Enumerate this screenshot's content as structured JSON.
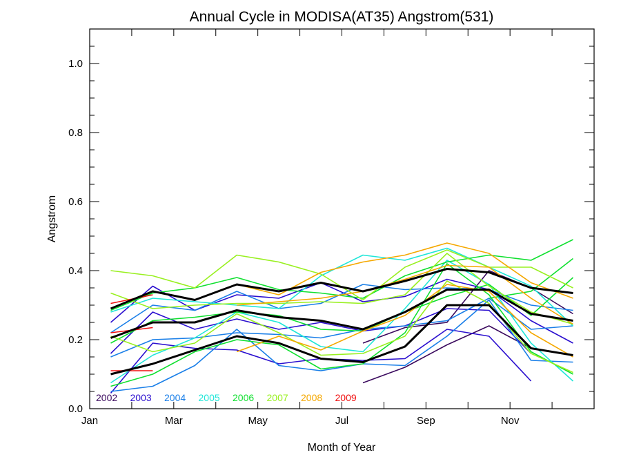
{
  "chart_data": {
    "type": "line",
    "title": "Annual Cycle in MODISA(AT35) Angstrom(531)",
    "xlabel": "Month of Year",
    "ylabel": "Angstrom",
    "xlim": [
      1,
      13
    ],
    "ylim": [
      0.0,
      1.1
    ],
    "x_ticks": [
      {
        "value": 1,
        "label": "Jan"
      },
      {
        "value": 3,
        "label": "Mar"
      },
      {
        "value": 5,
        "label": "May"
      },
      {
        "value": 7,
        "label": "Jul"
      },
      {
        "value": 9,
        "label": "Sep"
      },
      {
        "value": 11,
        "label": "Nov"
      }
    ],
    "y_ticks": [
      {
        "value": 0.0,
        "label": "0.0"
      },
      {
        "value": 0.2,
        "label": "0.2"
      },
      {
        "value": 0.4,
        "label": "0.4"
      },
      {
        "value": 0.6,
        "label": "0.6"
      },
      {
        "value": 0.8,
        "label": "0.8"
      },
      {
        "value": 1.0,
        "label": "1.0"
      }
    ],
    "grid": false,
    "legend_position": "bottom-left inside plot",
    "legend": [
      {
        "label": "2002",
        "color": "#3b0a5e"
      },
      {
        "label": "2003",
        "color": "#2b0fcf"
      },
      {
        "label": "2004",
        "color": "#1a7fe8"
      },
      {
        "label": "2005",
        "color": "#1fe6d8"
      },
      {
        "label": "2006",
        "color": "#10e030"
      },
      {
        "label": "2007",
        "color": "#99f020"
      },
      {
        "label": "2008",
        "color": "#f5a800"
      },
      {
        "label": "2009",
        "color": "#f01010"
      }
    ],
    "series": [
      {
        "color": "#3b0a5e",
        "x": [
          7.5,
          8.5,
          9.5,
          10.5,
          11.5,
          12.5
        ],
        "y": [
          0.075,
          0.12,
          0.185,
          0.24,
          0.175,
          0.155
        ]
      },
      {
        "color": "#3b0a5e",
        "x": [
          7.5,
          8.5,
          9.5,
          10.5,
          11.5,
          12.5
        ],
        "y": [
          0.19,
          0.235,
          0.25,
          0.4,
          0.35,
          0.275
        ]
      },
      {
        "color": "#2b0fcf",
        "x": [
          1.5,
          2.5,
          3.5,
          4.5,
          5.5,
          6.5,
          7.5,
          8.5,
          9.5,
          10.5,
          11.5
        ],
        "y": [
          0.045,
          0.19,
          0.175,
          0.17,
          0.13,
          0.145,
          0.14,
          0.145,
          0.23,
          0.21,
          0.08
        ]
      },
      {
        "color": "#2b0fcf",
        "x": [
          1.5,
          2.5,
          3.5,
          4.5,
          5.5,
          6.5,
          7.5,
          8.5,
          9.5,
          10.5,
          11.5
        ],
        "y": [
          0.16,
          0.28,
          0.23,
          0.26,
          0.23,
          0.25,
          0.225,
          0.24,
          0.29,
          0.285,
          0.16
        ]
      },
      {
        "color": "#2b0fcf",
        "x": [
          1.5,
          2.5,
          3.5,
          4.5,
          5.5,
          6.5,
          7.5,
          8.5,
          9.5,
          10.5,
          11.5,
          12.5
        ],
        "y": [
          0.25,
          0.355,
          0.285,
          0.33,
          0.32,
          0.365,
          0.31,
          0.325,
          0.375,
          0.345,
          0.255,
          0.19
        ]
      },
      {
        "color": "#1a7fe8",
        "x": [
          1.5,
          2.5,
          3.5,
          4.5,
          5.5,
          6.5,
          7.5,
          8.5,
          9.5,
          10.5,
          11.5,
          12.5
        ],
        "y": [
          0.05,
          0.065,
          0.125,
          0.23,
          0.125,
          0.11,
          0.13,
          0.125,
          0.21,
          0.315,
          0.14,
          0.135
        ]
      },
      {
        "color": "#1a7fe8",
        "x": [
          1.5,
          2.5,
          3.5,
          4.5,
          5.5,
          6.5,
          7.5,
          8.5,
          9.5,
          10.5,
          11.5,
          12.5
        ],
        "y": [
          0.15,
          0.2,
          0.205,
          0.22,
          0.215,
          0.205,
          0.23,
          0.24,
          0.255,
          0.32,
          0.23,
          0.24
        ]
      },
      {
        "color": "#1a7fe8",
        "x": [
          1.5,
          2.5,
          3.5,
          4.5,
          5.5,
          6.5,
          7.5,
          8.5,
          9.5,
          10.5,
          11.5,
          12.5
        ],
        "y": [
          0.22,
          0.3,
          0.285,
          0.34,
          0.29,
          0.305,
          0.36,
          0.345,
          0.35,
          0.345,
          0.3,
          0.285
        ]
      },
      {
        "color": "#1fe6d8",
        "x": [
          1.5,
          2.5,
          3.5,
          4.5,
          5.5,
          6.5,
          7.5,
          8.5,
          9.5,
          10.5,
          11.5,
          12.5
        ],
        "y": [
          0.075,
          0.155,
          0.205,
          0.28,
          0.25,
          0.18,
          0.165,
          0.29,
          0.43,
          0.36,
          0.19,
          0.08
        ]
      },
      {
        "color": "#1fe6d8",
        "x": [
          1.5,
          2.5,
          3.5,
          4.5,
          5.5,
          6.5,
          7.5,
          8.5,
          9.5,
          10.5,
          11.5,
          12.5
        ],
        "y": [
          0.28,
          0.32,
          0.31,
          0.3,
          0.29,
          0.385,
          0.445,
          0.43,
          0.465,
          0.41,
          0.355,
          0.24
        ]
      },
      {
        "color": "#10e030",
        "x": [
          1.5,
          2.5,
          3.5,
          4.5,
          5.5,
          6.5,
          7.5,
          8.5,
          9.5,
          10.5,
          11.5,
          12.5
        ],
        "y": [
          0.065,
          0.1,
          0.165,
          0.2,
          0.185,
          0.115,
          0.13,
          0.22,
          0.42,
          0.33,
          0.165,
          0.1
        ]
      },
      {
        "color": "#10e030",
        "x": [
          1.5,
          2.5,
          3.5,
          4.5,
          5.5,
          6.5,
          7.5,
          8.5,
          9.5,
          10.5,
          11.5,
          12.5
        ],
        "y": [
          0.19,
          0.255,
          0.265,
          0.28,
          0.27,
          0.23,
          0.225,
          0.28,
          0.325,
          0.36,
          0.27,
          0.38
        ]
      },
      {
        "color": "#10e030",
        "x": [
          1.5,
          2.5,
          3.5,
          4.5,
          5.5,
          6.5,
          7.5,
          8.5,
          9.5,
          10.5,
          11.5,
          12.5
        ],
        "y": [
          0.285,
          0.335,
          0.35,
          0.38,
          0.345,
          0.335,
          0.32,
          0.385,
          0.425,
          0.445,
          0.43,
          0.49
        ]
      },
      {
        "color": "#10e030",
        "x": [
          10.5,
          11.5,
          12.5
        ],
        "y": [
          0.32,
          0.34,
          0.435
        ]
      },
      {
        "color": "#99f020",
        "x": [
          1.5,
          2.5,
          3.5,
          4.5,
          5.5,
          6.5,
          7.5,
          8.5,
          9.5,
          10.5,
          11.5,
          12.5
        ],
        "y": [
          0.21,
          0.165,
          0.19,
          0.275,
          0.22,
          0.155,
          0.16,
          0.21,
          0.37,
          0.305,
          0.16,
          0.105
        ]
      },
      {
        "color": "#99f020",
        "x": [
          1.5,
          2.5,
          3.5,
          4.5,
          5.5,
          6.5,
          7.5,
          8.5,
          9.5,
          10.5,
          11.5,
          12.5
        ],
        "y": [
          0.335,
          0.29,
          0.3,
          0.305,
          0.305,
          0.31,
          0.305,
          0.33,
          0.45,
          0.355,
          0.28,
          0.245
        ]
      },
      {
        "color": "#99f020",
        "x": [
          1.5,
          2.5,
          3.5,
          4.5,
          5.5,
          6.5,
          7.5,
          8.5,
          9.5,
          10.5,
          11.5,
          12.5
        ],
        "y": [
          0.4,
          0.385,
          0.35,
          0.445,
          0.425,
          0.39,
          0.315,
          0.41,
          0.46,
          0.41,
          0.41,
          0.35
        ]
      },
      {
        "color": "#f5a800",
        "x": [
          4.5,
          5.5,
          6.5,
          7.5,
          8.5,
          9.5,
          10.5,
          11.5,
          12.5
        ],
        "y": [
          0.165,
          0.21,
          0.17,
          0.225,
          0.27,
          0.36,
          0.34,
          0.22,
          0.15
        ]
      },
      {
        "color": "#f5a800",
        "x": [
          4.5,
          5.5,
          6.5,
          7.5,
          8.5,
          9.5,
          10.5,
          11.5,
          12.5
        ],
        "y": [
          0.3,
          0.31,
          0.32,
          0.34,
          0.375,
          0.415,
          0.41,
          0.32,
          0.245
        ]
      },
      {
        "color": "#f5a800",
        "x": [
          4.5,
          5.5,
          6.5,
          7.5,
          8.5,
          9.5,
          10.5,
          11.5,
          12.5
        ],
        "y": [
          0.36,
          0.33,
          0.395,
          0.425,
          0.445,
          0.48,
          0.45,
          0.365,
          0.32
        ]
      },
      {
        "color": "#f01010",
        "x": [
          1.5,
          2.5
        ],
        "y": [
          0.11,
          0.11
        ]
      },
      {
        "color": "#f01010",
        "x": [
          1.5,
          2.5
        ],
        "y": [
          0.22,
          0.235
        ]
      },
      {
        "color": "#f01010",
        "x": [
          1.5,
          2.5
        ],
        "y": [
          0.305,
          0.33
        ]
      },
      {
        "color": "#000000",
        "width": 3,
        "x": [
          1.5,
          2.5,
          3.5,
          4.5,
          5.5,
          6.5,
          7.5,
          8.5,
          9.5,
          10.5,
          11.5,
          12.5
        ],
        "y": [
          0.1,
          0.13,
          0.17,
          0.21,
          0.19,
          0.145,
          0.135,
          0.18,
          0.3,
          0.3,
          0.175,
          0.155
        ]
      },
      {
        "color": "#000000",
        "width": 3,
        "x": [
          1.5,
          2.5,
          3.5,
          4.5,
          5.5,
          6.5,
          7.5,
          8.5,
          9.5,
          10.5,
          11.5,
          12.5
        ],
        "y": [
          0.205,
          0.25,
          0.25,
          0.285,
          0.265,
          0.255,
          0.23,
          0.28,
          0.345,
          0.345,
          0.275,
          0.255
        ]
      },
      {
        "color": "#000000",
        "width": 3,
        "x": [
          1.5,
          2.5,
          3.5,
          4.5,
          5.5,
          6.5,
          7.5,
          8.5,
          9.5,
          10.5,
          11.5,
          12.5
        ],
        "y": [
          0.29,
          0.34,
          0.315,
          0.36,
          0.34,
          0.365,
          0.34,
          0.37,
          0.405,
          0.395,
          0.35,
          0.335
        ]
      }
    ]
  }
}
